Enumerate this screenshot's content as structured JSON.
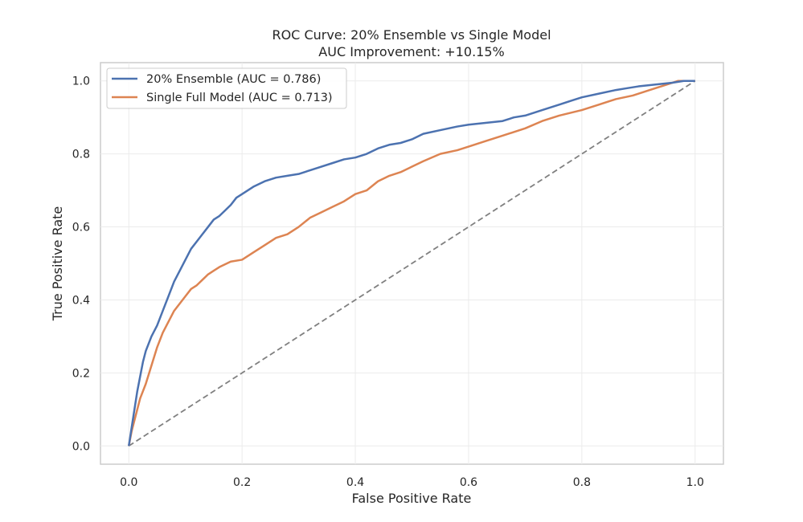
{
  "chart_data": {
    "type": "line",
    "title": "ROC Curve: 20% Ensemble vs Single Model",
    "subtitle": "AUC Improvement: +10.15%",
    "xlabel": "False Positive Rate",
    "ylabel": "True Positive Rate",
    "xlim": [
      -0.05,
      1.05
    ],
    "ylim": [
      -0.05,
      1.05
    ],
    "xticks": [
      0.0,
      0.2,
      0.4,
      0.6,
      0.8,
      1.0
    ],
    "yticks": [
      0.0,
      0.2,
      0.4,
      0.6,
      0.8,
      1.0
    ],
    "xtick_labels": [
      "0.0",
      "0.2",
      "0.4",
      "0.6",
      "0.8",
      "1.0"
    ],
    "ytick_labels": [
      "0.0",
      "0.2",
      "0.4",
      "0.6",
      "0.8",
      "1.0"
    ],
    "grid": true,
    "legend_position": "top-left",
    "series": [
      {
        "name": "20% Ensemble (AUC = 0.786)",
        "color": "#4c72b0",
        "x": [
          0.0,
          0.005,
          0.01,
          0.015,
          0.02,
          0.025,
          0.03,
          0.04,
          0.05,
          0.06,
          0.07,
          0.08,
          0.09,
          0.1,
          0.11,
          0.12,
          0.13,
          0.14,
          0.15,
          0.16,
          0.17,
          0.18,
          0.19,
          0.2,
          0.22,
          0.24,
          0.26,
          0.28,
          0.3,
          0.33,
          0.36,
          0.38,
          0.4,
          0.42,
          0.44,
          0.46,
          0.48,
          0.5,
          0.52,
          0.55,
          0.58,
          0.6,
          0.63,
          0.66,
          0.68,
          0.7,
          0.73,
          0.76,
          0.78,
          0.8,
          0.83,
          0.86,
          0.88,
          0.9,
          0.93,
          0.96,
          0.98,
          1.0
        ],
        "y": [
          0.0,
          0.05,
          0.1,
          0.15,
          0.19,
          0.23,
          0.26,
          0.3,
          0.33,
          0.37,
          0.41,
          0.45,
          0.48,
          0.51,
          0.54,
          0.56,
          0.58,
          0.6,
          0.62,
          0.63,
          0.645,
          0.66,
          0.68,
          0.69,
          0.71,
          0.725,
          0.735,
          0.74,
          0.745,
          0.76,
          0.775,
          0.785,
          0.79,
          0.8,
          0.815,
          0.825,
          0.83,
          0.84,
          0.855,
          0.865,
          0.875,
          0.88,
          0.885,
          0.89,
          0.9,
          0.905,
          0.92,
          0.935,
          0.945,
          0.955,
          0.965,
          0.975,
          0.98,
          0.985,
          0.99,
          0.995,
          1.0,
          1.0
        ]
      },
      {
        "name": "Single Full Model (AUC = 0.713)",
        "color": "#dd8452",
        "x": [
          0.0,
          0.005,
          0.01,
          0.015,
          0.02,
          0.03,
          0.04,
          0.05,
          0.06,
          0.07,
          0.08,
          0.09,
          0.1,
          0.11,
          0.12,
          0.13,
          0.14,
          0.15,
          0.16,
          0.18,
          0.2,
          0.22,
          0.24,
          0.26,
          0.28,
          0.3,
          0.32,
          0.34,
          0.36,
          0.38,
          0.4,
          0.42,
          0.44,
          0.46,
          0.48,
          0.5,
          0.52,
          0.55,
          0.58,
          0.6,
          0.63,
          0.66,
          0.7,
          0.73,
          0.76,
          0.8,
          0.83,
          0.86,
          0.89,
          0.92,
          0.95,
          0.97,
          1.0
        ],
        "y": [
          0.0,
          0.04,
          0.07,
          0.1,
          0.13,
          0.17,
          0.22,
          0.27,
          0.31,
          0.34,
          0.37,
          0.39,
          0.41,
          0.43,
          0.44,
          0.455,
          0.47,
          0.48,
          0.49,
          0.505,
          0.51,
          0.53,
          0.55,
          0.57,
          0.58,
          0.6,
          0.625,
          0.64,
          0.655,
          0.67,
          0.69,
          0.7,
          0.725,
          0.74,
          0.75,
          0.765,
          0.78,
          0.8,
          0.81,
          0.82,
          0.835,
          0.85,
          0.87,
          0.89,
          0.905,
          0.92,
          0.935,
          0.95,
          0.96,
          0.975,
          0.99,
          1.0,
          1.0
        ]
      },
      {
        "name": "",
        "color": "#808080",
        "style": "dashed",
        "x": [
          0.0,
          1.0
        ],
        "y": [
          0.0,
          1.0
        ]
      }
    ]
  }
}
